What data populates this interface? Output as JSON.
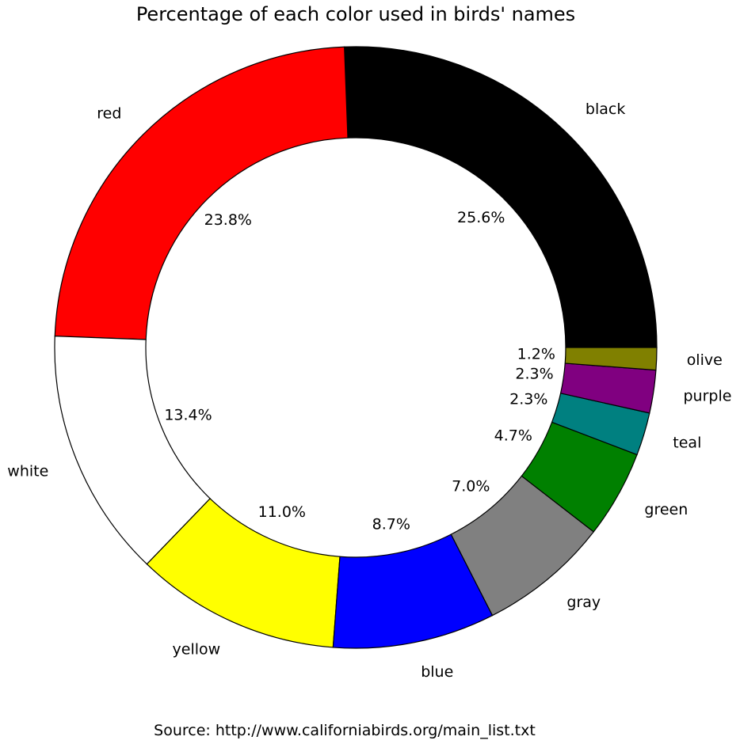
{
  "chart_data": {
    "type": "pie",
    "title": "Percentage of each color used in birds' names",
    "source": "Source: http://www.californiabirds.org/main_list.txt",
    "start_angle_deg": 0,
    "direction": "counterclockwise",
    "slices": [
      {
        "label": "black",
        "value": 25.6,
        "pct_label": "25.6%",
        "color": "#000000"
      },
      {
        "label": "red",
        "value": 23.8,
        "pct_label": "23.8%",
        "color": "#ff0000"
      },
      {
        "label": "white",
        "value": 13.4,
        "pct_label": "13.4%",
        "color": "#ffffff"
      },
      {
        "label": "yellow",
        "value": 11.0,
        "pct_label": "11.0%",
        "color": "#ffff00"
      },
      {
        "label": "blue",
        "value": 8.7,
        "pct_label": "8.7%",
        "color": "#0000ff"
      },
      {
        "label": "gray",
        "value": 7.0,
        "pct_label": "7.0%",
        "color": "#808080"
      },
      {
        "label": "green",
        "value": 4.7,
        "pct_label": "4.7%",
        "color": "#008000"
      },
      {
        "label": "teal",
        "value": 2.3,
        "pct_label": "2.3%",
        "color": "#008080"
      },
      {
        "label": "purple",
        "value": 2.3,
        "pct_label": "2.3%",
        "color": "#800080"
      },
      {
        "label": "olive",
        "value": 1.2,
        "pct_label": "1.2%",
        "color": "#808000"
      }
    ]
  }
}
